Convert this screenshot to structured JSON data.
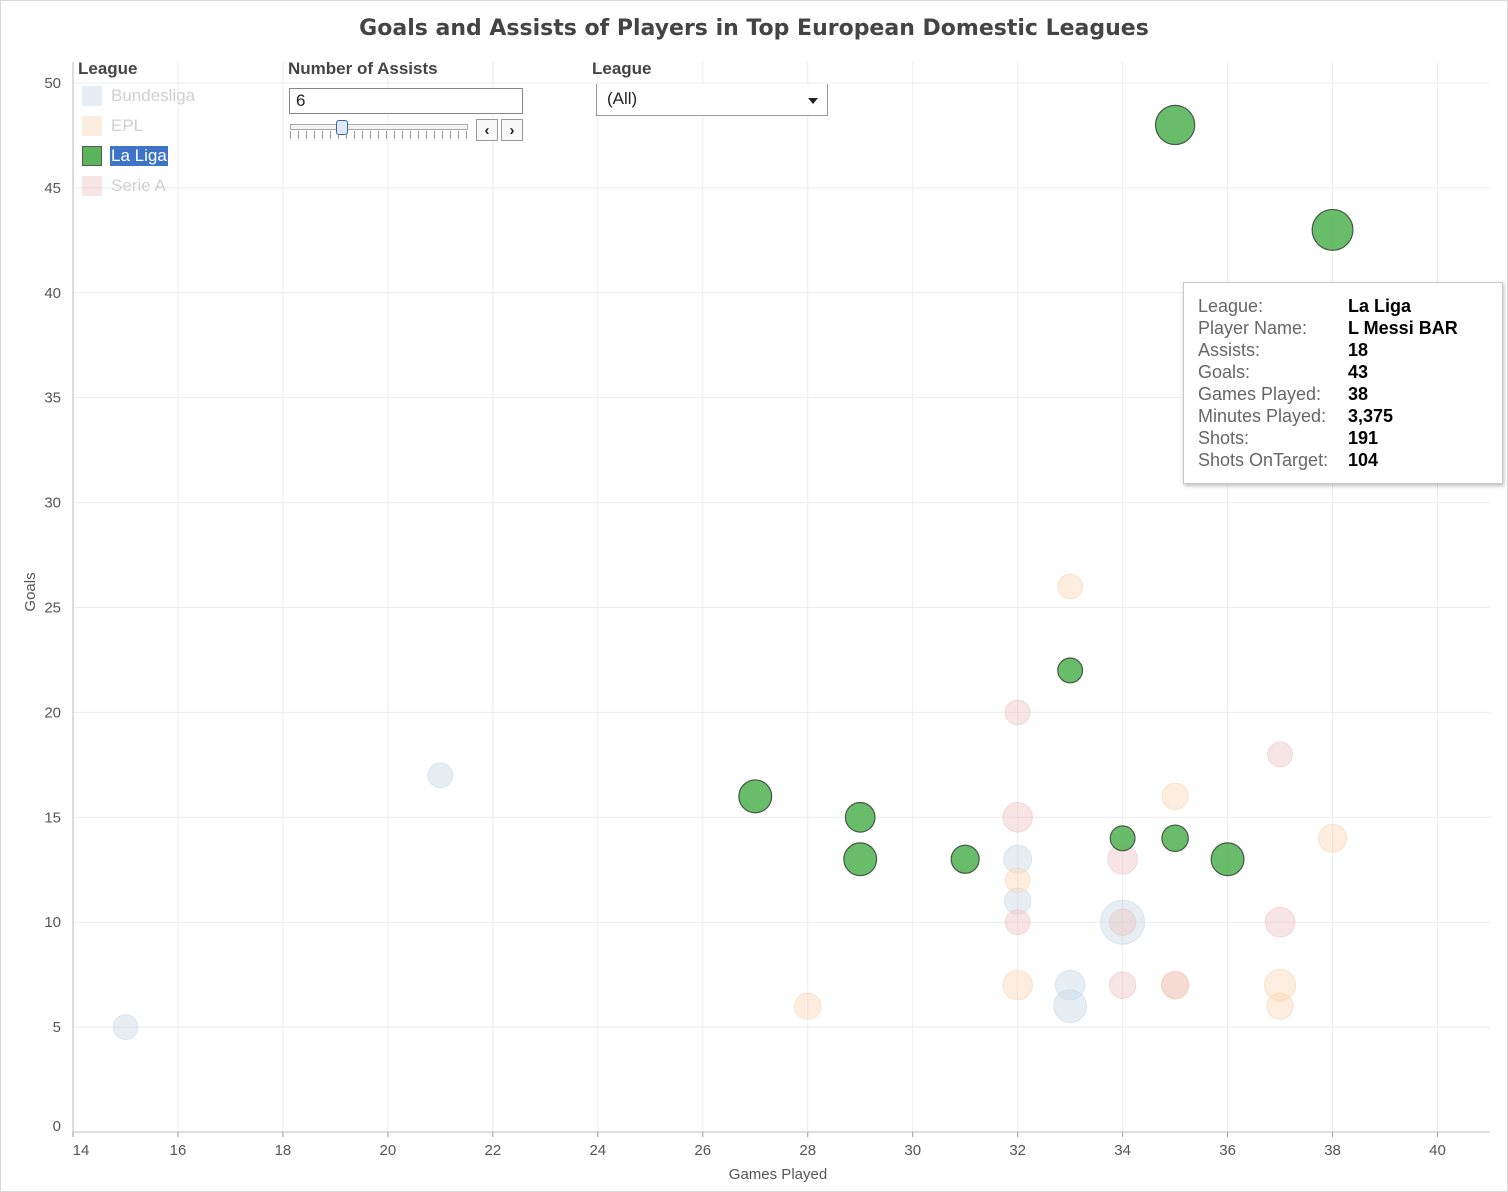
{
  "colors": {
    "bundesliga": "#c8d9e6",
    "epl": "#f8d6b8",
    "la_liga": "#59b55a",
    "serie_a": "#eec5c6",
    "grid": "#ececec",
    "selection": "#3d74c8"
  },
  "legend": {
    "title": "League",
    "items": [
      {
        "label": "Bundesliga",
        "state": "dimmed",
        "color": "#c8d9e6"
      },
      {
        "label": "EPL",
        "state": "dimmed",
        "color": "#f8d6b8"
      },
      {
        "label": "La Liga",
        "state": "selected",
        "color": "#59b55a"
      },
      {
        "label": "Serie A",
        "state": "dimmed",
        "color": "#eec5c6"
      }
    ]
  },
  "assist_filter": {
    "title": "Number of Assists",
    "value": "6",
    "prev_icon": "chevron-left-icon",
    "next_icon": "chevron-right-icon"
  },
  "league_filter": {
    "title": "League",
    "value": "(All)",
    "icon": "dropdown-arrow-icon"
  },
  "tooltip": {
    "rows": [
      {
        "key": "League:",
        "value": "La Liga"
      },
      {
        "key": "Player Name:",
        "value": "L Messi BAR"
      },
      {
        "key": "Assists:",
        "value": "18"
      },
      {
        "key": "Goals:",
        "value": "43"
      },
      {
        "key": "Games Played:",
        "value": "38"
      },
      {
        "key": "Minutes Played:",
        "value": "3,375"
      },
      {
        "key": "Shots:",
        "value": "191"
      },
      {
        "key": "Shots OnTarget:",
        "value": "104"
      }
    ]
  },
  "chart_data": {
    "type": "scatter",
    "title": "Goals and Assists of Players in Top European Domestic Leagues",
    "xlabel": "Games Played",
    "ylabel": "Goals",
    "xlim": [
      14,
      41
    ],
    "ylim": [
      0,
      51
    ],
    "xticks": [
      14,
      16,
      18,
      20,
      22,
      24,
      26,
      28,
      30,
      32,
      34,
      36,
      38,
      40
    ],
    "yticks": [
      0,
      5,
      10,
      15,
      20,
      25,
      30,
      35,
      40,
      45,
      50
    ],
    "grid": true,
    "size_encoding": "Assists",
    "highlighted_series": "La Liga",
    "series": [
      {
        "name": "Bundesliga",
        "points": [
          {
            "x": 15,
            "y": 5,
            "s": 8
          },
          {
            "x": 21,
            "y": 17,
            "s": 8
          },
          {
            "x": 32,
            "y": 13,
            "s": 10
          },
          {
            "x": 32,
            "y": 11,
            "s": 9
          },
          {
            "x": 33,
            "y": 7,
            "s": 11
          },
          {
            "x": 33,
            "y": 6,
            "s": 13
          },
          {
            "x": 34,
            "y": 10,
            "s": 20
          }
        ]
      },
      {
        "name": "EPL",
        "points": [
          {
            "x": 28,
            "y": 6,
            "s": 9
          },
          {
            "x": 32,
            "y": 12,
            "s": 8
          },
          {
            "x": 32,
            "y": 7,
            "s": 11
          },
          {
            "x": 33,
            "y": 26,
            "s": 8
          },
          {
            "x": 35,
            "y": 16,
            "s": 9
          },
          {
            "x": 35,
            "y": 7,
            "s": 10
          },
          {
            "x": 37,
            "y": 7,
            "s": 12
          },
          {
            "x": 37,
            "y": 6,
            "s": 9
          },
          {
            "x": 38,
            "y": 14,
            "s": 10
          }
        ]
      },
      {
        "name": "La Liga",
        "points": [
          {
            "x": 27,
            "y": 16,
            "s": 13
          },
          {
            "x": 29,
            "y": 15,
            "s": 11
          },
          {
            "x": 29,
            "y": 13,
            "s": 13
          },
          {
            "x": 31,
            "y": 13,
            "s": 10
          },
          {
            "x": 33,
            "y": 22,
            "s": 8
          },
          {
            "x": 34,
            "y": 14,
            "s": 8
          },
          {
            "x": 35,
            "y": 14,
            "s": 9
          },
          {
            "x": 35,
            "y": 48,
            "s": 17
          },
          {
            "x": 36,
            "y": 13,
            "s": 13
          },
          {
            "x": 38,
            "y": 43,
            "s": 18
          }
        ]
      },
      {
        "name": "Serie A",
        "points": [
          {
            "x": 32,
            "y": 20,
            "s": 8
          },
          {
            "x": 32,
            "y": 15,
            "s": 11
          },
          {
            "x": 32,
            "y": 10,
            "s": 8
          },
          {
            "x": 34,
            "y": 13,
            "s": 11
          },
          {
            "x": 34,
            "y": 10,
            "s": 9
          },
          {
            "x": 34,
            "y": 7,
            "s": 9
          },
          {
            "x": 35,
            "y": 7,
            "s": 9
          },
          {
            "x": 37,
            "y": 18,
            "s": 8
          },
          {
            "x": 37,
            "y": 10,
            "s": 11
          }
        ]
      }
    ]
  }
}
